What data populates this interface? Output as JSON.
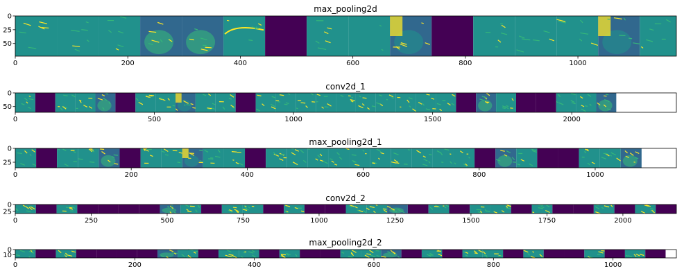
{
  "colors": {
    "background": "#ffffff",
    "dead_channel": "#440154",
    "dark_teal": "#31688e",
    "teal": "#21918c",
    "green": "#35b779",
    "yellow": "#fde725"
  },
  "chart_data": [
    {
      "type": "heatmap",
      "title": "max_pooling2d",
      "xlim": [
        0,
        1175
      ],
      "ylim": [
        73,
        0
      ],
      "xticks": [
        0,
        200,
        400,
        600,
        800,
        1000
      ],
      "yticks": [
        0,
        25,
        50
      ],
      "panel_width": 74,
      "patterns": [
        "edges",
        "edges",
        "edges",
        "cat",
        "cat",
        "cat-edge",
        "dead",
        "edges",
        "fill",
        "cat-bright",
        "dead",
        "edges",
        "edges",
        "edges",
        "cat-bright",
        "edges"
      ]
    },
    {
      "type": "heatmap",
      "title": "conv2d_1",
      "xlim": [
        0,
        2376
      ],
      "ylim": [
        71,
        0
      ],
      "xticks": [
        0,
        500,
        1000,
        1500,
        2000
      ],
      "yticks": [
        0,
        50
      ],
      "panel_width": 72,
      "patterns": [
        "edges",
        "dead",
        "edges",
        "edges",
        "cat",
        "dead",
        "edges",
        "edges",
        "cat-bright",
        "edges",
        "edges",
        "dead",
        "edges",
        "edges",
        "edges",
        "edges",
        "edges",
        "edges",
        "edges",
        "edges",
        "edges",
        "edges",
        "dead",
        "cat",
        "edges",
        "dead",
        "dead",
        "edges",
        "edges",
        "cat"
      ]
    },
    {
      "type": "heatmap",
      "title": "max_pooling2d_1",
      "xlim": [
        0,
        1140
      ],
      "ylim": [
        35,
        0
      ],
      "xticks": [
        0,
        200,
        400,
        600,
        800,
        1000
      ],
      "yticks": [
        0,
        25
      ],
      "panel_width": 36,
      "patterns": [
        "edges",
        "dead",
        "edges",
        "edges",
        "cat",
        "dead",
        "edges",
        "edges",
        "cat-bright",
        "edges",
        "edges",
        "dead",
        "edges",
        "edges",
        "edges",
        "edges",
        "edges",
        "edges",
        "edges",
        "edges",
        "edges",
        "edges",
        "dead",
        "cat",
        "edges",
        "dead",
        "dead",
        "edges",
        "edges",
        "cat"
      ]
    },
    {
      "type": "heatmap",
      "title": "conv2d_2",
      "xlim": [
        0,
        2176
      ],
      "ylim": [
        33,
        0
      ],
      "xticks": [
        0,
        250,
        500,
        750,
        1000,
        1250,
        1500,
        1750,
        2000
      ],
      "yticks": [
        0,
        25
      ],
      "panel_width": 68,
      "patterns": [
        "edges",
        "dead",
        "edges",
        "dead",
        "dead",
        "dead",
        "dead",
        "cat",
        "edges",
        "dead",
        "edges",
        "edges",
        "dead",
        "edges",
        "dead",
        "dead",
        "edges",
        "edges",
        "cat",
        "dead",
        "edges",
        "dead",
        "edges",
        "edges",
        "dead",
        "edges",
        "dead",
        "dead",
        "edges",
        "dead",
        "edges",
        "dead"
      ]
    },
    {
      "type": "heatmap",
      "title": "max_pooling2d_2",
      "xlim": [
        0,
        1106
      ],
      "ylim": [
        16,
        0
      ],
      "xticks": [
        0,
        200,
        400,
        600,
        800,
        1000
      ],
      "yticks": [
        0,
        10
      ],
      "panel_width": 34,
      "patterns": [
        "edges",
        "dead",
        "edges",
        "dead",
        "dead",
        "dead",
        "dead",
        "cat",
        "edges",
        "dead",
        "edges",
        "edges",
        "dead",
        "edges",
        "dead",
        "dead",
        "edges",
        "edges",
        "cat",
        "dead",
        "edges",
        "dead",
        "edges",
        "edges",
        "dead",
        "edges",
        "dead",
        "dead",
        "edges",
        "dead",
        "edges",
        "dead"
      ]
    }
  ]
}
